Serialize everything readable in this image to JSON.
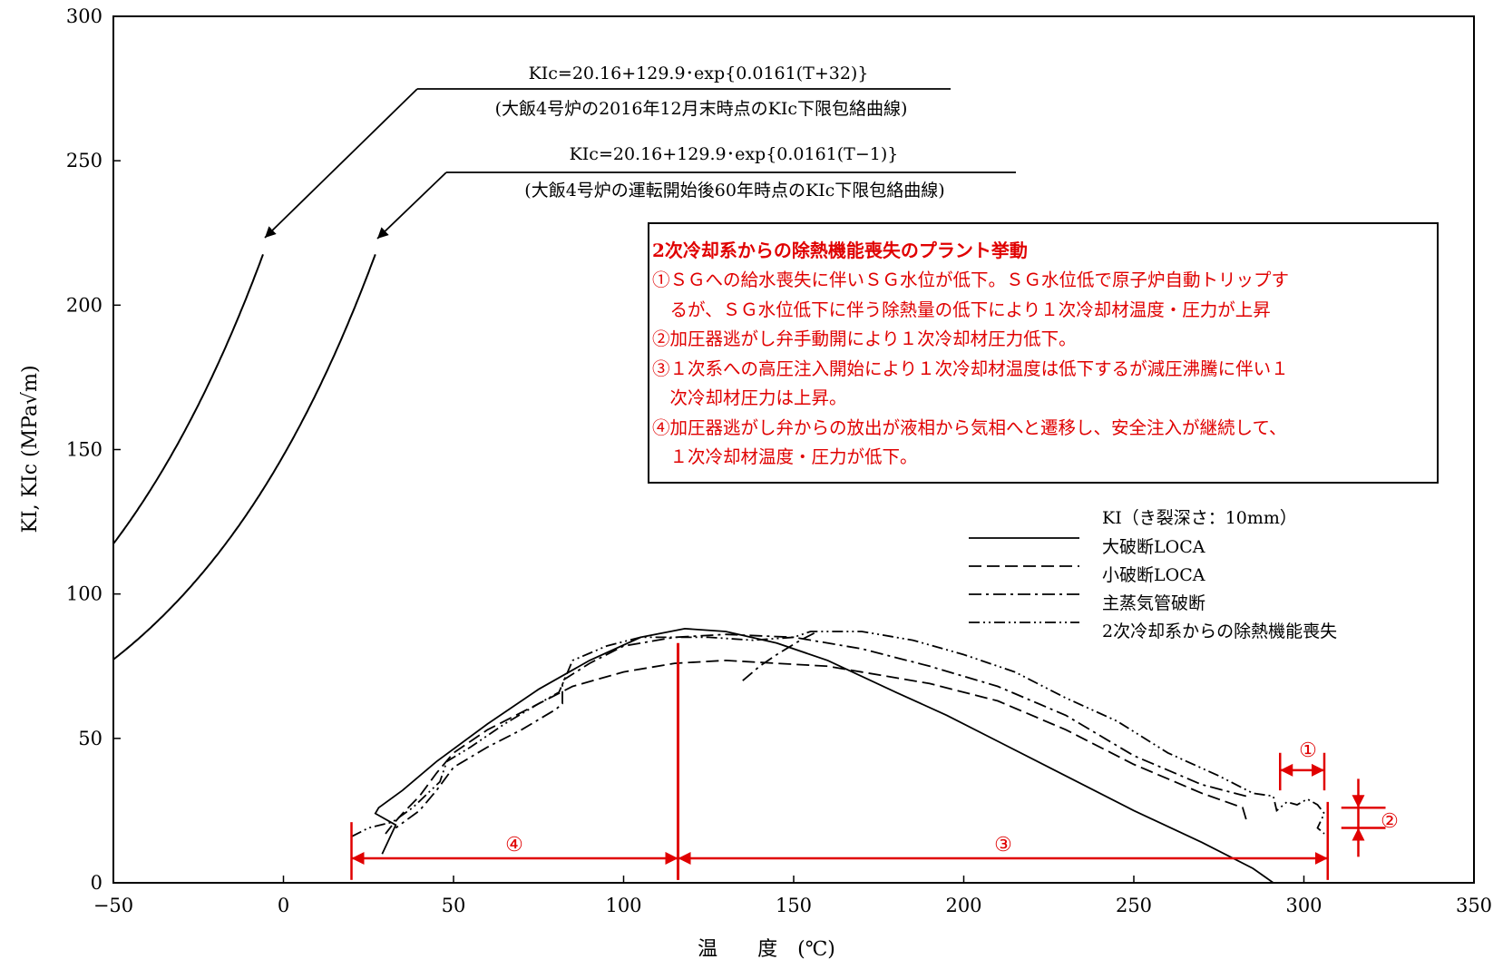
{
  "chart_data": {
    "type": "line",
    "xlabel": "温　　度　(℃)",
    "ylabel": "KI, KIc (MPa√m)",
    "xlim": [
      -50,
      350
    ],
    "ylim": [
      0,
      300
    ],
    "x_ticks": [
      "−50",
      "0",
      "50",
      "100",
      "150",
      "200",
      "250",
      "300",
      "350"
    ],
    "y_ticks": [
      "0",
      "50",
      "100",
      "150",
      "200",
      "250",
      "300"
    ],
    "kic_curves": [
      {
        "formula": "KIc=20.16+129.9･exp{0.0161(T+32)}",
        "note": "(大飯4号炉の2016年12月末時点のKIc下限包絡曲線)",
        "shift": 32,
        "x_range": [
          -50,
          -6
        ]
      },
      {
        "formula": "KIc=20.16+129.9･exp{0.0161(T−1)}",
        "note": "(大飯4号炉の運転開始後60年時点のKIc下限包絡曲線)",
        "shift": -1,
        "x_range": [
          -50,
          27
        ]
      }
    ],
    "legend_title": "KI（き裂深さ：10mm）",
    "series": [
      {
        "name": "大破断LOCA",
        "style": "solid",
        "points": [
          [
            291,
            0
          ],
          [
            285,
            5
          ],
          [
            270,
            14
          ],
          [
            250,
            25
          ],
          [
            230,
            37
          ],
          [
            210,
            49
          ],
          [
            195,
            58
          ],
          [
            180,
            66
          ],
          [
            160,
            77
          ],
          [
            145,
            83
          ],
          [
            130,
            87
          ],
          [
            118,
            88
          ],
          [
            105,
            85
          ],
          [
            90,
            77
          ],
          [
            75,
            67
          ],
          [
            60,
            55
          ],
          [
            45,
            42
          ],
          [
            35,
            32
          ],
          [
            28,
            26
          ],
          [
            27,
            24
          ],
          [
            33,
            20
          ],
          [
            29,
            10
          ]
        ]
      },
      {
        "name": "小破断LOCA",
        "style": "dashed",
        "points": [
          [
            283,
            22
          ],
          [
            282,
            26
          ],
          [
            270,
            31
          ],
          [
            250,
            41
          ],
          [
            230,
            53
          ],
          [
            210,
            63
          ],
          [
            190,
            69
          ],
          [
            160,
            75
          ],
          [
            130,
            77
          ],
          [
            115,
            76
          ],
          [
            100,
            73
          ],
          [
            85,
            68
          ],
          [
            75,
            62
          ],
          [
            60,
            53
          ],
          [
            50,
            45
          ],
          [
            45,
            38
          ],
          [
            40,
            30
          ],
          [
            35,
            24
          ],
          [
            32,
            20
          ],
          [
            30,
            17
          ]
        ]
      },
      {
        "name": "主蒸気管破断",
        "style": "dash-dot",
        "points": [
          [
            283,
            30
          ],
          [
            270,
            34
          ],
          [
            250,
            44
          ],
          [
            230,
            58
          ],
          [
            210,
            68
          ],
          [
            190,
            75
          ],
          [
            170,
            81
          ],
          [
            150,
            85
          ],
          [
            130,
            86
          ],
          [
            115,
            85
          ],
          [
            100,
            82
          ],
          [
            90,
            76
          ],
          [
            82,
            70
          ],
          [
            82,
            62
          ],
          [
            80,
            60
          ],
          [
            70,
            53
          ],
          [
            60,
            47
          ],
          [
            50,
            40
          ],
          [
            45,
            32
          ],
          [
            40,
            25
          ],
          [
            33,
            19
          ]
        ]
      },
      {
        "name": "2次冷却系からの除熱機能喪失",
        "style": "dash-dot-dot",
        "points": [
          [
            20,
            16
          ],
          [
            25,
            19
          ],
          [
            32,
            21
          ],
          [
            38,
            26
          ],
          [
            46,
            35
          ],
          [
            48,
            42
          ],
          [
            55,
            47
          ],
          [
            65,
            55
          ],
          [
            75,
            62
          ],
          [
            81,
            66
          ],
          [
            85,
            77
          ],
          [
            95,
            82
          ],
          [
            105,
            85
          ],
          [
            115,
            85
          ],
          [
            125,
            85
          ],
          [
            138,
            84
          ],
          [
            150,
            85
          ],
          [
            155,
            87
          ],
          [
            170,
            87
          ],
          [
            185,
            84
          ],
          [
            200,
            79
          ],
          [
            215,
            73
          ],
          [
            230,
            64
          ],
          [
            245,
            56
          ],
          [
            260,
            45
          ],
          [
            275,
            37
          ],
          [
            285,
            31
          ],
          [
            291,
            30
          ],
          [
            292,
            25
          ],
          [
            295,
            28
          ],
          [
            298,
            27
          ],
          [
            301,
            29
          ],
          [
            304,
            27
          ],
          [
            306,
            24
          ],
          [
            304,
            19
          ],
          [
            306,
            17
          ]
        ]
      }
    ],
    "extra_segments": [
      {
        "style": "dash-dot",
        "points": [
          [
            135,
            70
          ],
          [
            140,
            75
          ],
          [
            145,
            79
          ],
          [
            152,
            84
          ],
          [
            157,
            87
          ]
        ]
      }
    ]
  },
  "event_box": {
    "title": "2次冷却系からの除熱機能喪失のプラント挙動",
    "lines": [
      "①ＳＧへの給水喪失に伴いＳＧ水位が低下。ＳＧ水位低で原子炉自動トリップす",
      "　るが、ＳＧ水位低下に伴う除熱量の低下により１次冷却材温度・圧力が上昇",
      "②加圧器逃がし弁手動開により１次冷却材圧力低下。",
      "③１次系への高圧注入開始により１次冷却材温度は低下するが減圧沸騰に伴い１",
      "　次冷却材圧力は上昇。",
      "④加圧器逃がし弁からの放出が液相から気相へと遷移し、安全注入が継続して、",
      "　１次冷却材温度・圧力が低下。"
    ]
  },
  "annotations": {
    "range_1_label": "①",
    "range_2_label": "②",
    "range_3_label": "③",
    "range_4_label": "④",
    "range_1": [
      293,
      306
    ],
    "range_2": [
      19,
      26
    ],
    "range_3": [
      116,
      307
    ],
    "range_4": [
      20,
      116
    ],
    "vertical_marker": {
      "x": 116,
      "y_max": 83
    },
    "color": "#e00000"
  }
}
